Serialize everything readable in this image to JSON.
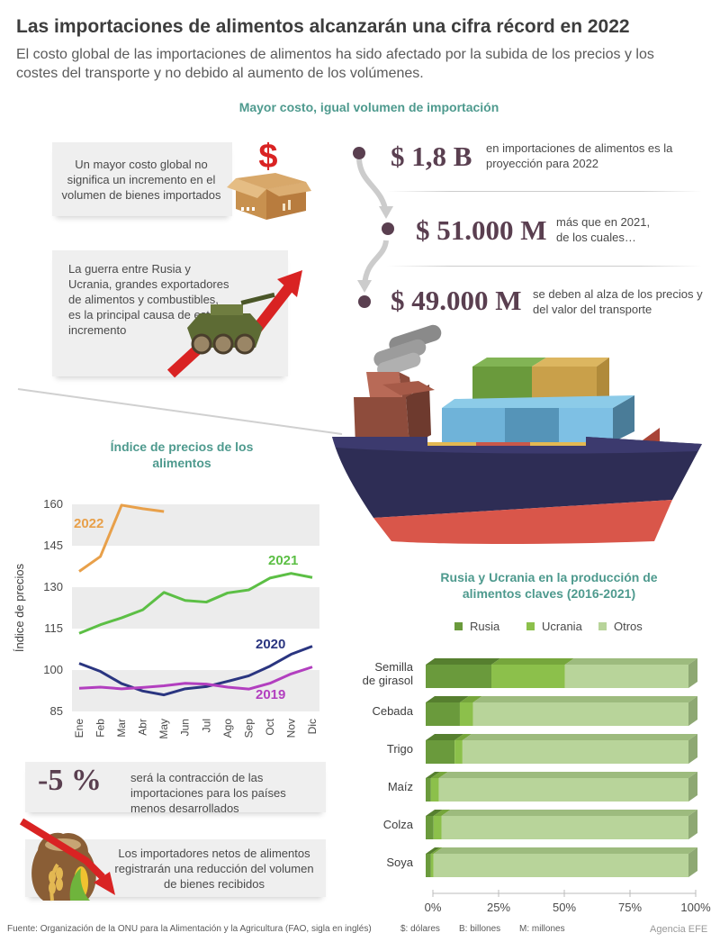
{
  "header": {
    "title": "Las importaciones de alimentos alcanzarán una cifra récord en 2022",
    "subtitle": "El costo global de las importaciones de alimentos ha sido afectado por la subida de los precios y los costes del transporte y no debido al aumento de los volúmenes."
  },
  "section_cost": {
    "title": "Mayor costo, igual volumen de importación",
    "callout_1": "Un mayor costo global no significa un incremento en el volumen de bienes importados",
    "callout_2": "La guerra entre Rusia y Ucrania, grandes exportadores de alimentos y combustibles, es la principal causa de este incremento",
    "dollar_sign": "$",
    "stats": [
      {
        "amount": "$ 1,8 B",
        "text": "en importaciones de alimentos es la proyección para 2022"
      },
      {
        "amount": "$ 51.000 M",
        "text": "más que en 2021, de los cuales…"
      },
      {
        "amount": "$ 49.000 M",
        "text": "se deben al alza de los precios y del valor del transporte"
      }
    ]
  },
  "section_lower": {
    "contraction_amount": "-5 %",
    "contraction_text": "será la contracción de las importaciones para los países menos desarrollados",
    "importers_text": "Los importadores netos de alimentos registrarán una reducción del volumen de bienes recibidos"
  },
  "footer": {
    "source": "Fuente: Organización de la ONU para la Alimentación y la Agricultura (FAO, sigla en inglés)",
    "legend_dollar": "$: dólares",
    "legend_b": "B: billones",
    "legend_m": "M: millones",
    "agency": "Agencia EFE"
  },
  "colors": {
    "teal_title": "#4e9a8e",
    "orange_2022": "#e8a04a",
    "green_2021": "#5cbf45",
    "blue_2020": "#2a3580",
    "purple_2019": "#b23fbf",
    "rusia": "#6a9a3c",
    "ucrania": "#8cc04b",
    "otros": "#b8d49a",
    "arrow_red": "#d92323"
  },
  "chart_data": [
    {
      "type": "line",
      "title": "Índice de precios de los alimentos",
      "ylabel": "Índice de precios",
      "xlabel": "",
      "categories": [
        "Ene",
        "Feb",
        "Mar",
        "Abr",
        "May",
        "Jun",
        "Jul",
        "Ago",
        "Sep",
        "Oct",
        "Nov",
        "Dic"
      ],
      "ylim": [
        85,
        160
      ],
      "yticks": [
        85,
        100,
        115,
        130,
        145,
        160
      ],
      "grid": "alternating bands",
      "series": [
        {
          "name": "2022",
          "values": [
            135.7,
            141.1,
            159.7,
            158.4,
            157.4,
            null,
            null,
            null,
            null,
            null,
            null,
            null
          ]
        },
        {
          "name": "2021",
          "values": [
            113.3,
            116.4,
            118.9,
            121.8,
            128.1,
            125.2,
            124.6,
            127.9,
            129.0,
            133.3,
            135.0,
            133.5
          ]
        },
        {
          "name": "2020",
          "values": [
            102.4,
            99.5,
            95.1,
            92.4,
            91.0,
            93.2,
            94.0,
            95.9,
            97.9,
            101.4,
            105.7,
            108.6
          ]
        },
        {
          "name": "2019",
          "values": [
            93.4,
            93.8,
            93.2,
            93.7,
            94.3,
            95.2,
            94.9,
            93.8,
            93.1,
            95.2,
            98.6,
            101.1
          ]
        }
      ]
    },
    {
      "type": "bar",
      "orientation": "horizontal",
      "stacked": true,
      "title": "Rusia y Ucrania en la producción de alimentos claves (2016-2021)",
      "categories": [
        "Semilla de girasol",
        "Cebada",
        "Trigo",
        "Maíz",
        "Colza",
        "Soya"
      ],
      "xlim": [
        0,
        100
      ],
      "xticks": [
        "0%",
        "25%",
        "50%",
        "75%",
        "100%"
      ],
      "legend": "top",
      "series": [
        {
          "name": "Rusia",
          "values": [
            25,
            13,
            11,
            2,
            3,
            2
          ]
        },
        {
          "name": "Ucrania",
          "values": [
            28,
            5,
            3,
            3,
            3,
            1
          ]
        },
        {
          "name": "Otros",
          "values": [
            47,
            82,
            86,
            95,
            94,
            97
          ]
        }
      ]
    }
  ]
}
